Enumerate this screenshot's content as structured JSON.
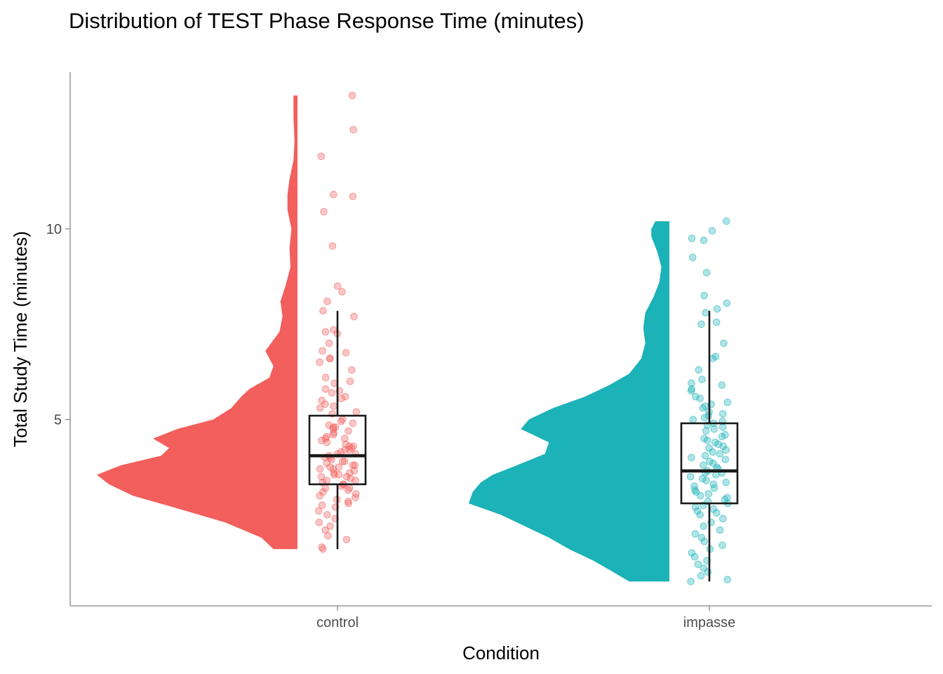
{
  "chart_data": {
    "type": "raincloud",
    "title": "Distribution of TEST Phase Response Time (minutes)",
    "xlabel": "Condition",
    "ylabel": "Total Study Time (minutes)",
    "ylim": [
      0.5,
      14.2
    ],
    "yticks": [
      5,
      10
    ],
    "grid": false,
    "categories": [
      "control",
      "impasse"
    ],
    "groups": [
      {
        "name": "control",
        "color": "#F25F5C",
        "box": {
          "min": 1.6,
          "q1": 3.3,
          "median": 4.05,
          "q3": 5.1,
          "max": 7.85
        },
        "data_range": [
          1.6,
          13.5
        ],
        "density": [
          [
            1.6,
            0.12
          ],
          [
            1.9,
            0.18
          ],
          [
            2.3,
            0.36
          ],
          [
            2.7,
            0.62
          ],
          [
            3.0,
            0.82
          ],
          [
            3.3,
            0.94
          ],
          [
            3.55,
            1.0
          ],
          [
            3.8,
            0.88
          ],
          [
            4.05,
            0.68
          ],
          [
            4.25,
            0.64
          ],
          [
            4.5,
            0.72
          ],
          [
            4.75,
            0.6
          ],
          [
            5.0,
            0.42
          ],
          [
            5.3,
            0.33
          ],
          [
            5.6,
            0.28
          ],
          [
            5.8,
            0.24
          ],
          [
            6.1,
            0.14
          ],
          [
            6.4,
            0.12
          ],
          [
            6.8,
            0.16
          ],
          [
            7.3,
            0.09
          ],
          [
            7.7,
            0.075
          ],
          [
            8.1,
            0.085
          ],
          [
            8.5,
            0.06
          ],
          [
            9.0,
            0.035
          ],
          [
            9.5,
            0.04
          ],
          [
            10.0,
            0.03
          ],
          [
            10.5,
            0.05
          ],
          [
            10.9,
            0.05
          ],
          [
            11.3,
            0.04
          ],
          [
            11.8,
            0.02
          ],
          [
            12.3,
            0.015
          ],
          [
            12.9,
            0.02
          ],
          [
            13.5,
            0.02
          ]
        ],
        "points": [
          13.5,
          12.6,
          11.9,
          10.9,
          10.85,
          10.45,
          9.55,
          8.5,
          8.35,
          8.1,
          7.85,
          7.7,
          7.35,
          7.3,
          7.25,
          7.0,
          6.8,
          6.75,
          6.6,
          6.6,
          6.5,
          6.3,
          6.1,
          6.0,
          5.95,
          5.8,
          5.75,
          5.7,
          5.6,
          5.55,
          5.5,
          5.4,
          5.35,
          5.3,
          5.2,
          5.15,
          5.0,
          4.95,
          4.9,
          4.85,
          4.8,
          4.8,
          4.75,
          4.7,
          4.65,
          4.6,
          4.55,
          4.5,
          4.5,
          4.45,
          4.4,
          4.35,
          4.3,
          4.3,
          4.25,
          4.2,
          4.2,
          4.15,
          4.1,
          4.1,
          4.05,
          4.0,
          4.0,
          3.95,
          3.9,
          3.9,
          3.85,
          3.8,
          3.8,
          3.75,
          3.75,
          3.7,
          3.7,
          3.65,
          3.6,
          3.6,
          3.55,
          3.55,
          3.5,
          3.5,
          3.45,
          3.4,
          3.4,
          3.35,
          3.3,
          3.3,
          3.25,
          3.2,
          3.2,
          3.15,
          3.1,
          3.05,
          3.0,
          2.95,
          2.9,
          2.85,
          2.8,
          2.75,
          2.7,
          2.6,
          2.5,
          2.4,
          2.3,
          2.2,
          2.1,
          1.95,
          1.85,
          1.65,
          1.6
        ]
      },
      {
        "name": "impasse",
        "color": "#1BB2B8",
        "box": {
          "min": 0.75,
          "q1": 2.8,
          "median": 3.65,
          "q3": 4.9,
          "max": 7.85
        },
        "data_range": [
          0.75,
          10.2
        ],
        "density": [
          [
            0.75,
            0.2
          ],
          [
            1.0,
            0.28
          ],
          [
            1.3,
            0.38
          ],
          [
            1.6,
            0.5
          ],
          [
            1.9,
            0.6
          ],
          [
            2.2,
            0.72
          ],
          [
            2.5,
            0.84
          ],
          [
            2.8,
            1.0
          ],
          [
            3.1,
            0.98
          ],
          [
            3.35,
            0.94
          ],
          [
            3.55,
            0.88
          ],
          [
            3.8,
            0.76
          ],
          [
            4.1,
            0.62
          ],
          [
            4.4,
            0.6
          ],
          [
            4.75,
            0.74
          ],
          [
            5.0,
            0.7
          ],
          [
            5.3,
            0.58
          ],
          [
            5.6,
            0.42
          ],
          [
            5.9,
            0.3
          ],
          [
            6.2,
            0.2
          ],
          [
            6.6,
            0.14
          ],
          [
            7.0,
            0.12
          ],
          [
            7.4,
            0.13
          ],
          [
            7.8,
            0.12
          ],
          [
            8.2,
            0.08
          ],
          [
            8.6,
            0.05
          ],
          [
            9.0,
            0.04
          ],
          [
            9.4,
            0.06
          ],
          [
            9.8,
            0.09
          ],
          [
            10.0,
            0.09
          ],
          [
            10.2,
            0.07
          ]
        ],
        "points": [
          10.2,
          9.95,
          9.75,
          9.7,
          9.25,
          8.85,
          8.25,
          8.05,
          7.9,
          7.8,
          7.55,
          7.5,
          7.0,
          6.65,
          6.6,
          6.3,
          6.05,
          5.95,
          5.9,
          5.8,
          5.75,
          5.6,
          5.55,
          5.45,
          5.4,
          5.35,
          5.3,
          5.2,
          5.15,
          5.1,
          5.05,
          5.0,
          4.95,
          4.9,
          4.85,
          4.8,
          4.75,
          4.7,
          4.6,
          4.55,
          4.5,
          4.45,
          4.4,
          4.35,
          4.3,
          4.25,
          4.2,
          4.15,
          4.1,
          4.05,
          4.0,
          3.95,
          3.9,
          3.85,
          3.8,
          3.75,
          3.7,
          3.65,
          3.6,
          3.6,
          3.55,
          3.5,
          3.45,
          3.4,
          3.35,
          3.3,
          3.25,
          3.2,
          3.15,
          3.1,
          3.05,
          3.0,
          2.95,
          2.9,
          2.85,
          2.8,
          2.75,
          2.7,
          2.65,
          2.6,
          2.55,
          2.5,
          2.4,
          2.3,
          2.2,
          2.1,
          2.0,
          1.9,
          1.8,
          1.7,
          1.6,
          1.5,
          1.4,
          1.3,
          1.2,
          1.1,
          1.0,
          0.9,
          0.8,
          0.75
        ]
      }
    ]
  }
}
